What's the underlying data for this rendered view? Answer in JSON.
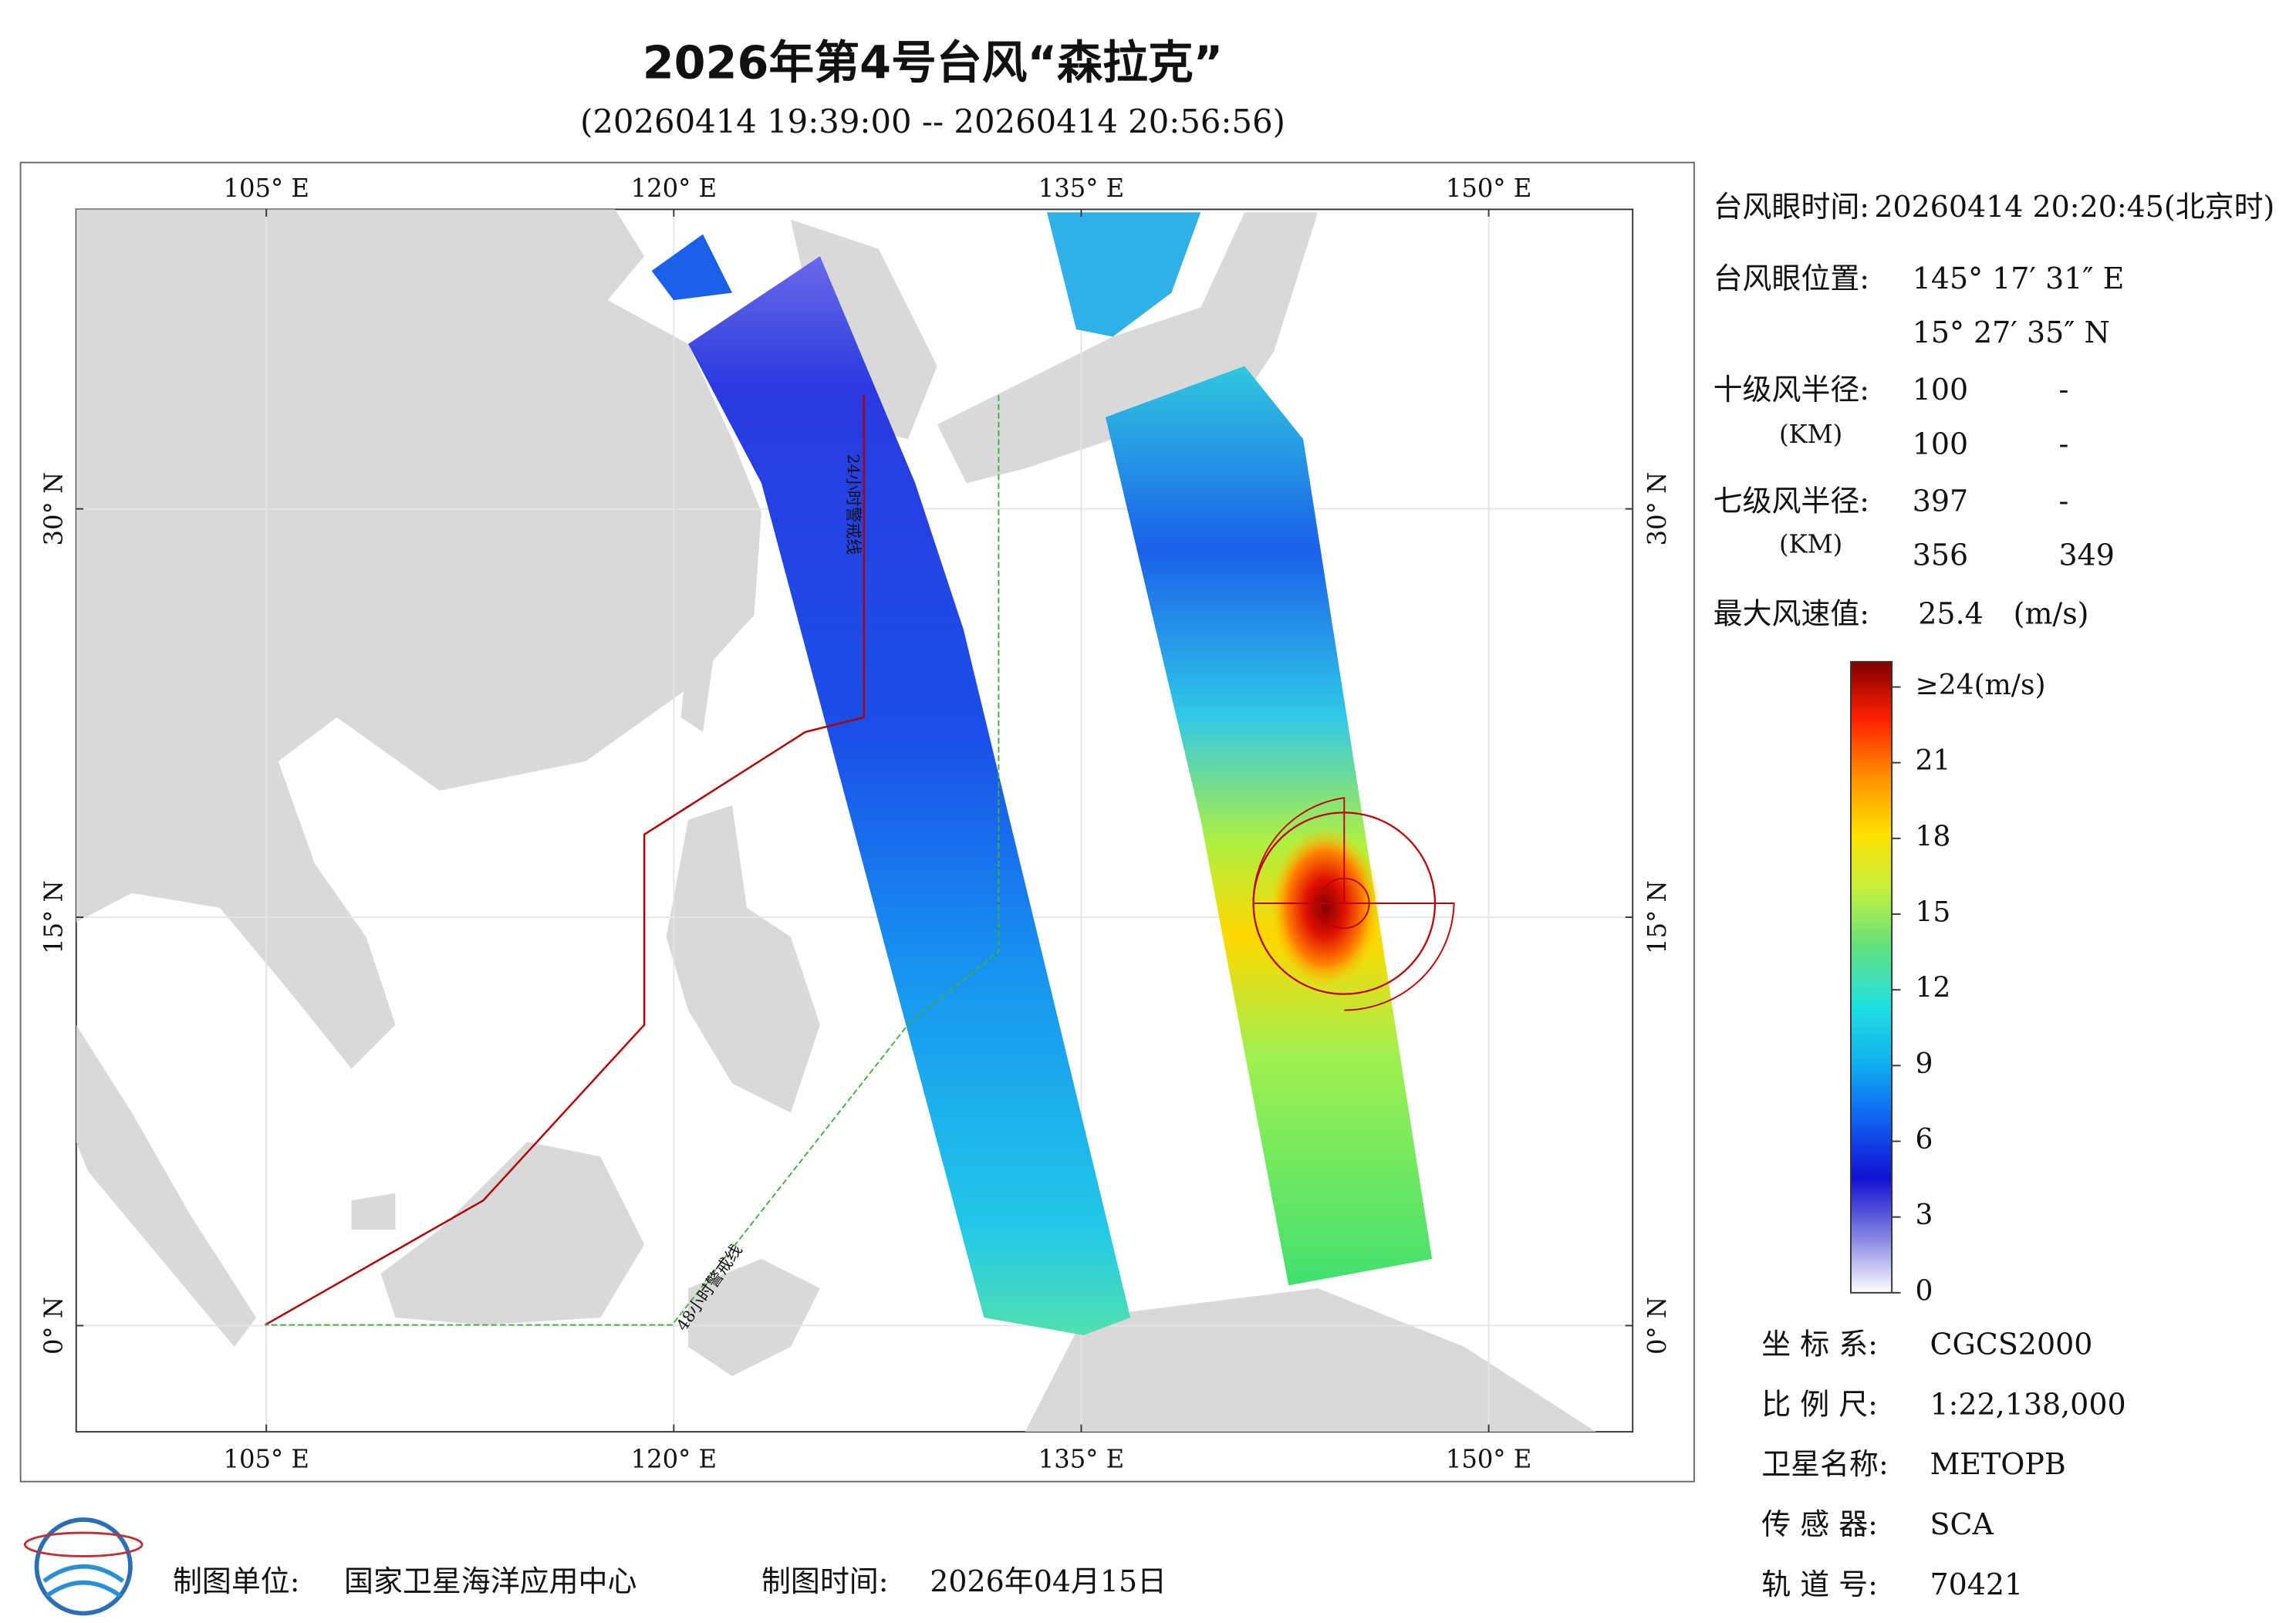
{
  "header": {
    "title": "2026年第4号台风“森拉克”",
    "subtitle": "(20260414 19:39:00 -- 20260414 20:56:56)"
  },
  "map": {
    "xlim": [
      98,
      155.3
    ],
    "ylim": [
      -3.9,
      41
    ],
    "xticks": [
      {
        "value": 105,
        "label": "105° E"
      },
      {
        "value": 120,
        "label": "120° E"
      },
      {
        "value": 135,
        "label": "135° E"
      },
      {
        "value": 150,
        "label": "150° E"
      }
    ],
    "yticks": [
      {
        "value": 0,
        "label": "0° N"
      },
      {
        "value": 15,
        "label": "15° N"
      },
      {
        "value": 30,
        "label": "30° N"
      }
    ],
    "grid": true,
    "land_color": "#d9d9d9",
    "warning_lines": [
      "24小时警戒线",
      "48小时警戒线"
    ]
  },
  "info": {
    "eye_time_label": "台风眼时间:",
    "eye_time": "20260414 20:20:45(北京时)",
    "eye_pos_label": "台风眼位置:",
    "eye_lon": "145° 17′ 31″ E",
    "eye_lat": "15° 27′ 35″ N",
    "r10_label": "十级风半径:",
    "r10_unit": "(KM)",
    "r10": [
      [
        100,
        "-"
      ],
      [
        100,
        "-"
      ]
    ],
    "r7_label": "七级风半径:",
    "r7_unit": "(KM)",
    "r7": [
      [
        397,
        "-"
      ],
      [
        356,
        349
      ]
    ],
    "max_wind_label": "最大风速值:",
    "max_wind": 25.4,
    "max_wind_unit": "(m/s)"
  },
  "colorbar": {
    "clim": [
      0,
      25
    ],
    "colors": [
      "#ffffff",
      "#8080e0",
      "#1010d0",
      "#1060f0",
      "#10b0f0",
      "#20e0e0",
      "#60e080",
      "#c0f040",
      "#ffe000",
      "#ff9000",
      "#ff2000",
      "#800000"
    ],
    "ticks": [
      0,
      3,
      6,
      9,
      12,
      15,
      18,
      21,
      {
        "value": 24,
        "label": "≥24(m/s)"
      }
    ]
  },
  "meta": [
    {
      "label": "坐 标 系:",
      "value": "CGCS2000"
    },
    {
      "label": "比 例 尺:",
      "value": "1:22,138,000"
    },
    {
      "label": "卫星名称:",
      "value": "METOPB"
    },
    {
      "label": "传 感 器:",
      "value": "SCA"
    },
    {
      "label": "轨 道 号:",
      "value": "70421"
    }
  ],
  "footer": {
    "unit_label": "制图单位:",
    "unit": "国家卫星海洋应用中心",
    "time_label": "制图时间:",
    "time": "2026年04月15日"
  }
}
